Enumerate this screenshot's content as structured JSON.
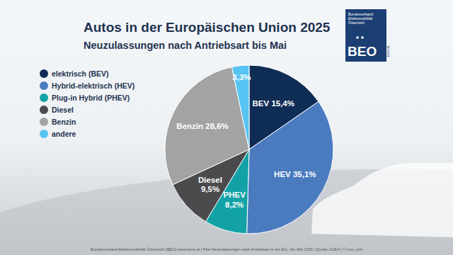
{
  "chart_data": {
    "type": "pie",
    "title": "Autos in der Europäischen Union 2025",
    "subtitle": "Neuzulassungen nach Antriebsart bis Mai",
    "categories": [
      "elektrisch (BEV)",
      "Hybrid-elektrisch (HEV)",
      "Plug-in Hybrid (PHEV)",
      "Diesel",
      "Benzin",
      "andere"
    ],
    "values": [
      15.4,
      35.1,
      8.2,
      9.5,
      28.6,
      3.3
    ],
    "value_labels": [
      "BEV 15,4%",
      "HEV 35,1%",
      "PHEV 8,2%",
      "Diesel 9,5%",
      "Benzin 28,6%",
      "3,3%"
    ],
    "colors": [
      "#0f2c55",
      "#4a7bbf",
      "#12a2a6",
      "#4b4b4d",
      "#a3a3a3",
      "#55c4f2"
    ],
    "data_labels": true,
    "legend": "left"
  },
  "logo": {
    "name": "BEO",
    "organisation": "Bundesverband Elektromobilität Österreich",
    "url": "beoe.at"
  },
  "footer": "Bundesverband Elektromobilität Österreich (BEO) www.beoe.at | Pkw Neuzulassungen nach Antriebsart in der EU, Jan-Mai 2025 | Quelle: ACEA | © com_unit"
}
